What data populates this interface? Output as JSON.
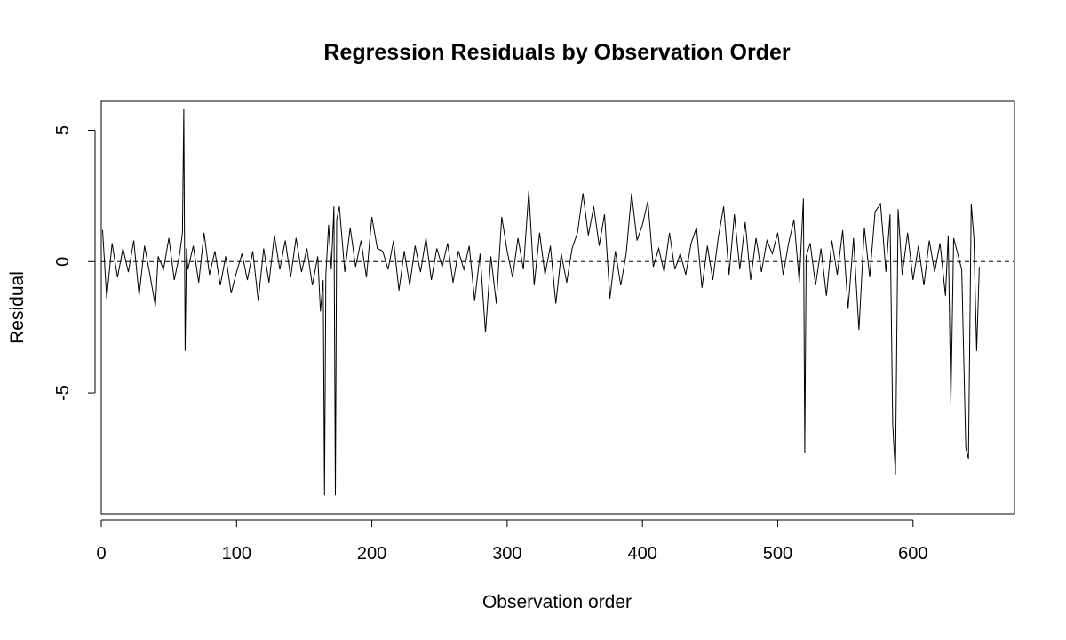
{
  "chart_data": {
    "type": "line",
    "title": "Regression Residuals by Observation Order",
    "xlabel": "Observation order",
    "ylabel": "Residual",
    "xlim": [
      0,
      675
    ],
    "ylim": [
      -9.6,
      6.1
    ],
    "x_ticks": [
      0,
      100,
      200,
      300,
      400,
      500,
      600
    ],
    "y_ticks": [
      5,
      0,
      -5
    ],
    "reference_line": {
      "y": 0,
      "style": "dashed"
    },
    "grid": false,
    "legend": "none",
    "series": [
      {
        "x": [
          1,
          4,
          8,
          12,
          16,
          20,
          24,
          28,
          32,
          36,
          40,
          42,
          46,
          50,
          54,
          58,
          60,
          61,
          62,
          63,
          64,
          68,
          72,
          76,
          80,
          84,
          88,
          92,
          96,
          100,
          104,
          108,
          112,
          116,
          120,
          124,
          128,
          132,
          136,
          140,
          144,
          148,
          152,
          156,
          160,
          162,
          164,
          165,
          166,
          168,
          170,
          172,
          173,
          174,
          176,
          180,
          184,
          188,
          192,
          196,
          200,
          204,
          208,
          212,
          216,
          220,
          224,
          228,
          232,
          236,
          240,
          244,
          248,
          252,
          256,
          260,
          264,
          268,
          272,
          276,
          280,
          284,
          288,
          292,
          296,
          300,
          304,
          308,
          312,
          316,
          320,
          324,
          328,
          332,
          336,
          340,
          344,
          348,
          352,
          356,
          360,
          364,
          368,
          372,
          376,
          380,
          384,
          388,
          392,
          396,
          400,
          404,
          408,
          412,
          416,
          420,
          424,
          428,
          432,
          436,
          440,
          444,
          448,
          452,
          456,
          460,
          464,
          468,
          472,
          476,
          480,
          484,
          488,
          492,
          496,
          500,
          504,
          508,
          512,
          516,
          519,
          520,
          521,
          524,
          528,
          532,
          536,
          540,
          544,
          548,
          552,
          556,
          560,
          564,
          568,
          572,
          576,
          580,
          583,
          585,
          587,
          589,
          592,
          596,
          600,
          604,
          608,
          612,
          616,
          620,
          624,
          626,
          628,
          630,
          632,
          636,
          639,
          641,
          643,
          645,
          647,
          649
        ],
        "y": [
          1.2,
          -1.4,
          0.7,
          -0.6,
          0.5,
          -0.4,
          0.8,
          -1.3,
          0.6,
          -0.5,
          -1.7,
          0.2,
          -0.3,
          0.9,
          -0.7,
          0.3,
          1.1,
          5.8,
          -3.4,
          0.5,
          -0.3,
          0.6,
          -0.8,
          1.1,
          -0.5,
          0.4,
          -0.9,
          0.2,
          -1.2,
          -0.4,
          0.3,
          -0.7,
          0.4,
          -1.5,
          0.5,
          -0.8,
          1.0,
          -0.3,
          0.8,
          -0.6,
          0.9,
          -0.4,
          0.5,
          -0.9,
          0.2,
          -1.9,
          -0.7,
          -8.9,
          -0.5,
          1.4,
          -0.3,
          2.1,
          -8.9,
          1.6,
          2.1,
          -0.4,
          1.3,
          -0.2,
          0.8,
          -0.6,
          1.7,
          0.5,
          0.4,
          -0.3,
          0.8,
          -1.1,
          0.4,
          -0.9,
          0.6,
          -0.4,
          0.9,
          -0.7,
          0.5,
          -0.2,
          0.7,
          -0.8,
          0.4,
          -0.3,
          0.6,
          -1.5,
          0.3,
          -2.7,
          0.2,
          -1.6,
          1.7,
          0.4,
          -0.6,
          0.9,
          -0.3,
          2.7,
          -0.9,
          1.1,
          -0.5,
          0.6,
          -1.6,
          0.3,
          -0.8,
          0.5,
          1.1,
          2.6,
          1.0,
          2.1,
          0.6,
          1.8,
          -1.4,
          0.4,
          -0.9,
          0.3,
          2.6,
          0.8,
          1.4,
          2.3,
          -0.2,
          0.5,
          -0.4,
          1.1,
          -0.3,
          0.3,
          -0.5,
          0.7,
          1.3,
          -1.0,
          0.6,
          -0.7,
          0.9,
          2.1,
          -0.5,
          1.8,
          -0.3,
          1.5,
          -0.7,
          0.9,
          -0.4,
          0.8,
          0.3,
          1.1,
          -0.5,
          0.7,
          1.6,
          -0.8,
          2.4,
          -7.3,
          0.2,
          0.7,
          -0.9,
          0.5,
          -1.3,
          0.8,
          -0.5,
          1.2,
          -1.8,
          0.9,
          -2.6,
          1.3,
          -0.6,
          1.9,
          2.2,
          -0.4,
          1.8,
          -6.2,
          -8.1,
          2.0,
          -0.5,
          1.1,
          -0.7,
          0.6,
          -0.9,
          0.8,
          -0.4,
          0.7,
          -1.3,
          1.0,
          -5.4,
          0.9,
          0.5,
          -0.3,
          -7.1,
          -7.5,
          2.2,
          0.9,
          -3.4,
          -0.2
        ]
      }
    ]
  }
}
